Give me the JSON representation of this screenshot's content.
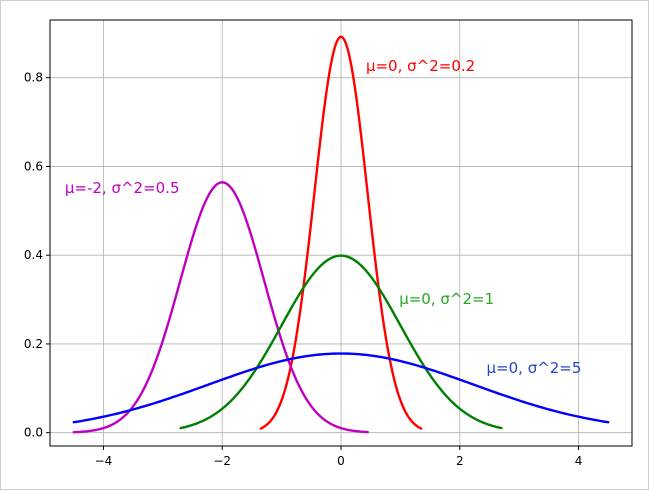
{
  "chart_data": {
    "type": "line",
    "title": "",
    "xlabel": "",
    "ylabel": "",
    "xlim": [
      -4.9,
      4.9
    ],
    "ylim": [
      -0.03,
      0.93
    ],
    "grid": true,
    "xticks": [
      -4,
      -2,
      0,
      2,
      4
    ],
    "xtick_labels": [
      "−4",
      "−2",
      "0",
      "2",
      "4"
    ],
    "yticks": [
      0.0,
      0.2,
      0.4,
      0.6,
      0.8
    ],
    "ytick_labels": [
      "0.0",
      "0.2",
      "0.4",
      "0.6",
      "0.8"
    ],
    "series": [
      {
        "mu": 0,
        "var": 0.2,
        "x_range": [
          -1.35,
          1.35
        ],
        "color": "#ff0000"
      },
      {
        "mu": -2,
        "var": 0.5,
        "x_range": [
          -4.5,
          0.45
        ],
        "color": "#bf00bf"
      },
      {
        "mu": 0,
        "var": 1,
        "x_range": [
          -2.7,
          2.7
        ],
        "color": "#008000"
      },
      {
        "mu": 0,
        "var": 5,
        "x_range": [
          -4.5,
          4.5
        ],
        "color": "#0000ff"
      }
    ],
    "annotations": [
      {
        "text": "μ=0, σ^2=0.2",
        "x": 0.42,
        "y": 0.815,
        "color": "#ff0000"
      },
      {
        "text": "μ=-2, σ^2=0.5",
        "x": -4.65,
        "y": 0.54,
        "color": "#bf00bf"
      },
      {
        "text": "μ=0, σ^2=1",
        "x": 0.98,
        "y": 0.29,
        "color": "#22aa22"
      },
      {
        "text": "μ=0, σ^2=5",
        "x": 2.45,
        "y": 0.135,
        "color": "#2244cc"
      }
    ]
  }
}
